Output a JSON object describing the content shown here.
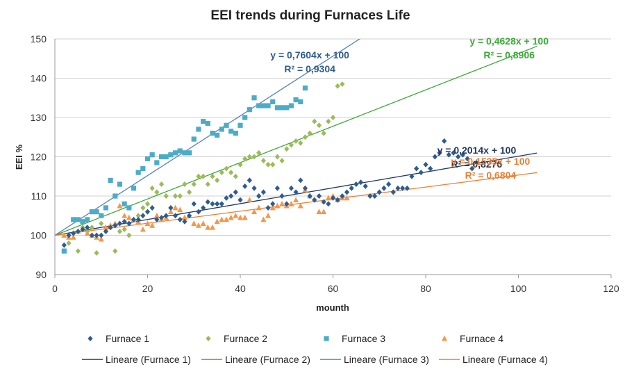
{
  "chart_data": {
    "type": "scatter",
    "title": "EEI trends during Furnaces Life",
    "xlabel": "mounth",
    "ylabel": "EEI %",
    "xlim": [
      0,
      120
    ],
    "ylim": [
      90,
      150
    ],
    "xticks": [
      0,
      20,
      40,
      60,
      80,
      100,
      120
    ],
    "yticks": [
      90,
      100,
      110,
      120,
      130,
      140,
      150
    ],
    "grid": "horizontal",
    "legend_position": "bottom",
    "series": [
      {
        "name": "Furnace 1",
        "marker": "diamond",
        "color": "#2e5c8e",
        "points": [
          [
            2,
            97.5
          ],
          [
            3,
            100
          ],
          [
            4,
            100.5
          ],
          [
            5,
            101
          ],
          [
            6,
            101.5
          ],
          [
            7,
            102
          ],
          [
            8,
            100
          ],
          [
            9,
            100
          ],
          [
            10,
            100
          ],
          [
            11,
            101
          ],
          [
            12,
            102
          ],
          [
            13,
            102.5
          ],
          [
            14,
            103
          ],
          [
            15,
            103.5
          ],
          [
            16,
            103
          ],
          [
            17,
            104
          ],
          [
            18,
            104
          ],
          [
            19,
            105
          ],
          [
            20,
            106
          ],
          [
            21,
            107
          ],
          [
            22,
            104
          ],
          [
            23,
            104.5
          ],
          [
            24,
            105
          ],
          [
            25,
            107
          ],
          [
            26,
            105
          ],
          [
            27,
            104
          ],
          [
            28,
            103.5
          ],
          [
            29,
            105
          ],
          [
            30,
            108
          ],
          [
            31,
            106
          ],
          [
            32,
            107
          ],
          [
            33,
            108.5
          ],
          [
            34,
            108
          ],
          [
            35,
            108
          ],
          [
            36,
            108
          ],
          [
            37,
            109.5
          ],
          [
            38,
            110
          ],
          [
            39,
            111
          ],
          [
            40,
            109
          ],
          [
            41,
            112.5
          ],
          [
            42,
            114
          ],
          [
            43,
            112
          ],
          [
            44,
            110
          ],
          [
            45,
            111
          ],
          [
            46,
            107
          ],
          [
            47,
            108
          ],
          [
            48,
            112
          ],
          [
            49,
            110
          ],
          [
            50,
            108
          ],
          [
            51,
            112
          ],
          [
            52,
            111
          ],
          [
            53,
            114
          ],
          [
            54,
            112
          ],
          [
            55,
            110
          ],
          [
            56,
            109
          ],
          [
            57,
            110
          ],
          [
            58,
            108.5
          ],
          [
            59,
            108
          ],
          [
            60,
            109.5
          ],
          [
            61,
            109
          ],
          [
            62,
            110
          ],
          [
            63,
            111
          ],
          [
            64,
            112
          ],
          [
            65,
            113
          ],
          [
            66,
            113.5
          ],
          [
            67,
            112.5
          ],
          [
            68,
            110
          ],
          [
            69,
            110
          ],
          [
            70,
            111
          ],
          [
            71,
            112
          ],
          [
            72,
            113
          ],
          [
            73,
            111
          ],
          [
            74,
            112
          ],
          [
            75,
            112
          ],
          [
            76,
            112
          ],
          [
            77,
            115
          ],
          [
            78,
            117
          ],
          [
            79,
            116
          ],
          [
            80,
            118
          ],
          [
            81,
            117
          ],
          [
            82,
            120
          ],
          [
            83,
            121
          ],
          [
            84,
            124
          ],
          [
            85,
            120.5
          ],
          [
            86,
            121
          ],
          [
            87,
            120
          ],
          [
            88,
            120.5
          ],
          [
            89,
            119.5
          ],
          [
            90,
            117
          ],
          [
            91,
            118.5
          ]
        ]
      },
      {
        "name": "Furnace 2",
        "marker": "diamond",
        "color": "#9bbb59",
        "points": [
          [
            3,
            98
          ],
          [
            4,
            100.5
          ],
          [
            5,
            96
          ],
          [
            6,
            102
          ],
          [
            7,
            101
          ],
          [
            8,
            102
          ],
          [
            9,
            95.5
          ],
          [
            10,
            103
          ],
          [
            11,
            101
          ],
          [
            12,
            102
          ],
          [
            13,
            96
          ],
          [
            14,
            101
          ],
          [
            15,
            101.5
          ],
          [
            16,
            100
          ],
          [
            17,
            104
          ],
          [
            18,
            105
          ],
          [
            19,
            107
          ],
          [
            20,
            108
          ],
          [
            21,
            112
          ],
          [
            22,
            111
          ],
          [
            23,
            113
          ],
          [
            24,
            110
          ],
          [
            25,
            107
          ],
          [
            26,
            110
          ],
          [
            27,
            110
          ],
          [
            28,
            113
          ],
          [
            29,
            111
          ],
          [
            30,
            113
          ],
          [
            31,
            115
          ],
          [
            32,
            115
          ],
          [
            33,
            113
          ],
          [
            34,
            115
          ],
          [
            35,
            114
          ],
          [
            36,
            116
          ],
          [
            37,
            117
          ],
          [
            38,
            116
          ],
          [
            39,
            115
          ],
          [
            40,
            118
          ],
          [
            41,
            119.5
          ],
          [
            42,
            120
          ],
          [
            43,
            120
          ],
          [
            44,
            121
          ],
          [
            45,
            119
          ],
          [
            46,
            118
          ],
          [
            47,
            118
          ],
          [
            48,
            120
          ],
          [
            49,
            119
          ],
          [
            50,
            122
          ],
          [
            51,
            123
          ],
          [
            52,
            124
          ],
          [
            53,
            123.5
          ],
          [
            54,
            125
          ],
          [
            55,
            126
          ],
          [
            56,
            129
          ],
          [
            57,
            128
          ],
          [
            58,
            126
          ],
          [
            59,
            129
          ],
          [
            60,
            130
          ],
          [
            61,
            138
          ],
          [
            62,
            138.5
          ]
        ]
      },
      {
        "name": "Furnace 3",
        "marker": "square",
        "color": "#4bacc6",
        "points": [
          [
            2,
            96
          ],
          [
            4,
            104
          ],
          [
            5,
            104
          ],
          [
            6,
            103.5
          ],
          [
            7,
            104
          ],
          [
            8,
            106
          ],
          [
            9,
            106
          ],
          [
            10,
            105
          ],
          [
            11,
            107
          ],
          [
            12,
            114
          ],
          [
            13,
            110
          ],
          [
            14,
            113
          ],
          [
            15,
            108
          ],
          [
            16,
            107
          ],
          [
            17,
            112
          ],
          [
            18,
            116
          ],
          [
            19,
            117
          ],
          [
            20,
            119.5
          ],
          [
            21,
            120.5
          ],
          [
            22,
            118.5
          ],
          [
            23,
            120
          ],
          [
            24,
            120
          ],
          [
            25,
            120.5
          ],
          [
            26,
            121
          ],
          [
            27,
            121.5
          ],
          [
            28,
            121
          ],
          [
            29,
            121
          ],
          [
            30,
            124.5
          ],
          [
            31,
            127
          ],
          [
            32,
            129
          ],
          [
            33,
            128.5
          ],
          [
            34,
            126
          ],
          [
            35,
            125.5
          ],
          [
            36,
            127
          ],
          [
            37,
            128
          ],
          [
            38,
            126.5
          ],
          [
            39,
            126
          ],
          [
            40,
            128
          ],
          [
            41,
            130
          ],
          [
            42,
            132
          ],
          [
            43,
            135
          ],
          [
            44,
            133
          ],
          [
            45,
            133
          ],
          [
            46,
            133
          ],
          [
            47,
            134
          ],
          [
            48,
            132.5
          ],
          [
            49,
            132.5
          ],
          [
            50,
            132.5
          ],
          [
            51,
            133
          ],
          [
            52,
            134.5
          ],
          [
            53,
            134
          ],
          [
            54,
            137.5
          ]
        ]
      },
      {
        "name": "Furnace 4",
        "marker": "triangle",
        "color": "#f79646",
        "points": [
          [
            2,
            100
          ],
          [
            3,
            99.5
          ],
          [
            4,
            99.5
          ],
          [
            5,
            101
          ],
          [
            6,
            101.5
          ],
          [
            7,
            100.5
          ],
          [
            8,
            100
          ],
          [
            9,
            99.5
          ],
          [
            10,
            99
          ],
          [
            11,
            102
          ],
          [
            12,
            102.5
          ],
          [
            13,
            103
          ],
          [
            14,
            107.5
          ],
          [
            15,
            105
          ],
          [
            16,
            104.5
          ],
          [
            17,
            104
          ],
          [
            18,
            103.5
          ],
          [
            19,
            101.5
          ],
          [
            20,
            103
          ],
          [
            21,
            102.5
          ],
          [
            22,
            105
          ],
          [
            23,
            104
          ],
          [
            24,
            104.5
          ],
          [
            25,
            106
          ],
          [
            26,
            107
          ],
          [
            27,
            106.5
          ],
          [
            28,
            104.5
          ],
          [
            29,
            105
          ],
          [
            30,
            103
          ],
          [
            31,
            102.5
          ],
          [
            32,
            103
          ],
          [
            33,
            102
          ],
          [
            34,
            102
          ],
          [
            35,
            103.5
          ],
          [
            36,
            104
          ],
          [
            37,
            104
          ],
          [
            38,
            104.5
          ],
          [
            39,
            105
          ],
          [
            40,
            104.5
          ],
          [
            41,
            104.5
          ],
          [
            42,
            109
          ],
          [
            43,
            106
          ],
          [
            44,
            107
          ],
          [
            45,
            104
          ],
          [
            46,
            105
          ],
          [
            47,
            107
          ],
          [
            48,
            107.5
          ],
          [
            49,
            108
          ],
          [
            50,
            107.5
          ],
          [
            51,
            108
          ],
          [
            52,
            109
          ],
          [
            53,
            107.5
          ],
          [
            54,
            111.5
          ],
          [
            55,
            110
          ],
          [
            56,
            109
          ],
          [
            57,
            106
          ],
          [
            58,
            106
          ],
          [
            59,
            109.5
          ],
          [
            60,
            110
          ],
          [
            61,
            109
          ],
          [
            62,
            109.5
          ],
          [
            63,
            109.5
          ]
        ]
      }
    ],
    "trendlines": [
      {
        "name": "Lineare (Furnace 1)",
        "color": "#1f3864",
        "slope": 0.2014,
        "intercept": 100,
        "x_range": [
          0,
          104
        ],
        "equation": "y = 0,2014x + 100",
        "r2": "R² = 0,8276"
      },
      {
        "name": "Lineare (Furnace 2)",
        "color": "#3aaa35",
        "slope": 0.4628,
        "intercept": 100,
        "x_range": [
          0,
          104
        ],
        "equation": "y = 0,4628x + 100",
        "r2": "R² = 0,8906"
      },
      {
        "name": "Lineare (Furnace 3)",
        "color": "#4f81bd",
        "slope": 0.7604,
        "intercept": 100,
        "x_range": [
          0,
          66
        ],
        "equation": "y = 0,7604x + 100",
        "r2": "R² = 0,9304"
      },
      {
        "name": "Lineare (Furnace 4)",
        "color": "#ed7d31",
        "slope": 0.1535,
        "intercept": 100,
        "x_range": [
          0,
          104
        ],
        "equation": "y = 0,1535x + 100",
        "r2": "R² = 0,6804"
      }
    ],
    "annotation_colors": {
      "Furnace 1": "#1f3864",
      "Furnace 2": "#3aaa35",
      "Furnace 3": "#2e5c8e",
      "Furnace 4": "#ed7d31"
    }
  }
}
